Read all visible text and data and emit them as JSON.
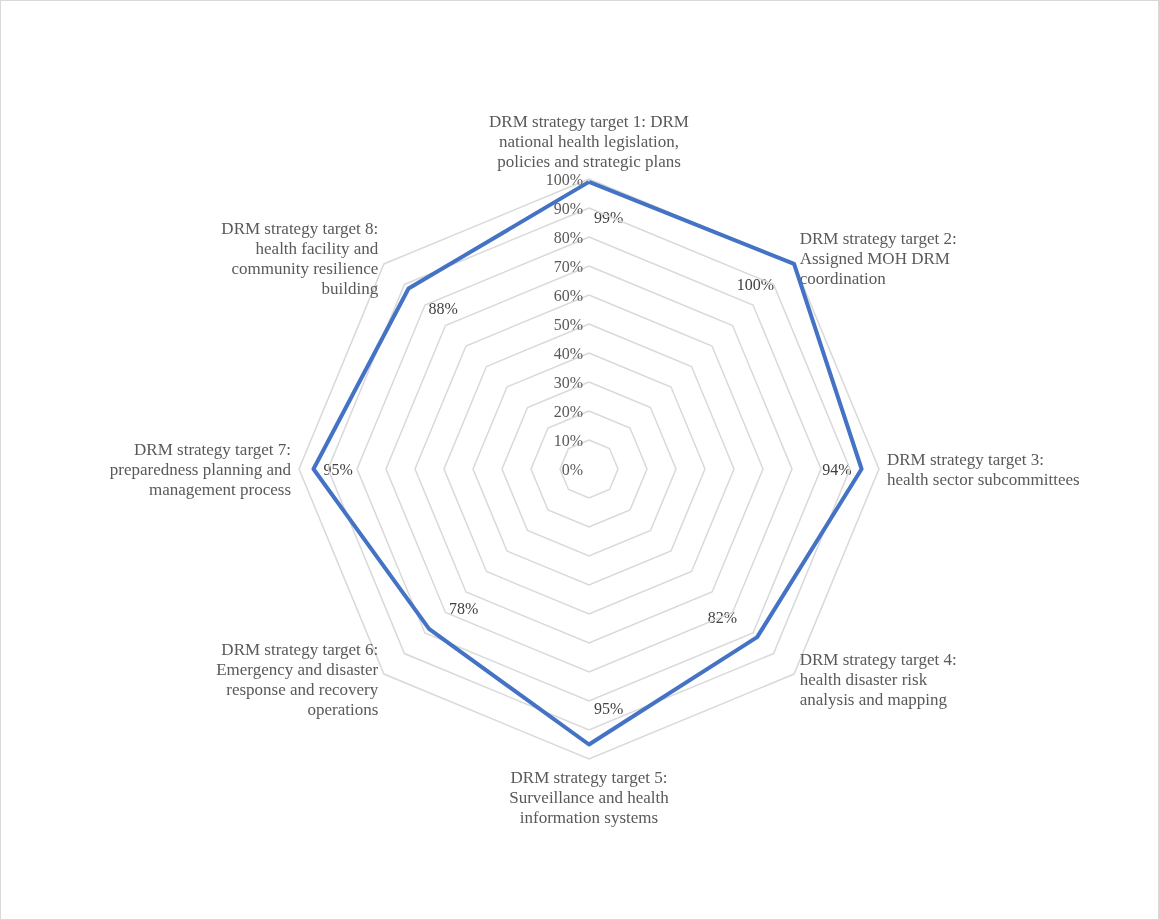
{
  "chart_data": {
    "type": "radar",
    "categories": [
      "DRM strategy target 1: DRM national health legislation, policies and strategic plans",
      "DRM strategy target 2: Assigned MOH DRM coordination",
      "DRM strategy target 3: health sector subcommittees",
      "DRM strategy target 4: health disaster risk analysis and mapping",
      "DRM strategy target 5: Surveillance and health information systems",
      "DRM strategy target 6: Emergency and disaster response and recovery operations",
      "DRM strategy target 7: preparedness planning and management process",
      "DRM strategy target 8: health facility and community resilience building"
    ],
    "series": [
      {
        "color": "#4472c4",
        "values": [
          99,
          100,
          94,
          82,
          95,
          78,
          95,
          88
        ],
        "value_labels": [
          "99%",
          "100%",
          "94%",
          "82%",
          "95%",
          "78%",
          "95%",
          "88%"
        ]
      }
    ],
    "ylim": [
      0,
      100
    ],
    "yticks": [
      {
        "value": 0,
        "label": "0%"
      },
      {
        "value": 10,
        "label": "10%"
      },
      {
        "value": 20,
        "label": "20%"
      },
      {
        "value": 30,
        "label": "30%"
      },
      {
        "value": 40,
        "label": "40%"
      },
      {
        "value": 50,
        "label": "50%"
      },
      {
        "value": 60,
        "label": "60%"
      },
      {
        "value": 70,
        "label": "70%"
      },
      {
        "value": 80,
        "label": "80%"
      },
      {
        "value": 90,
        "label": "90%"
      },
      {
        "value": 100,
        "label": "100%"
      }
    ],
    "grid": true,
    "marker": "none"
  }
}
